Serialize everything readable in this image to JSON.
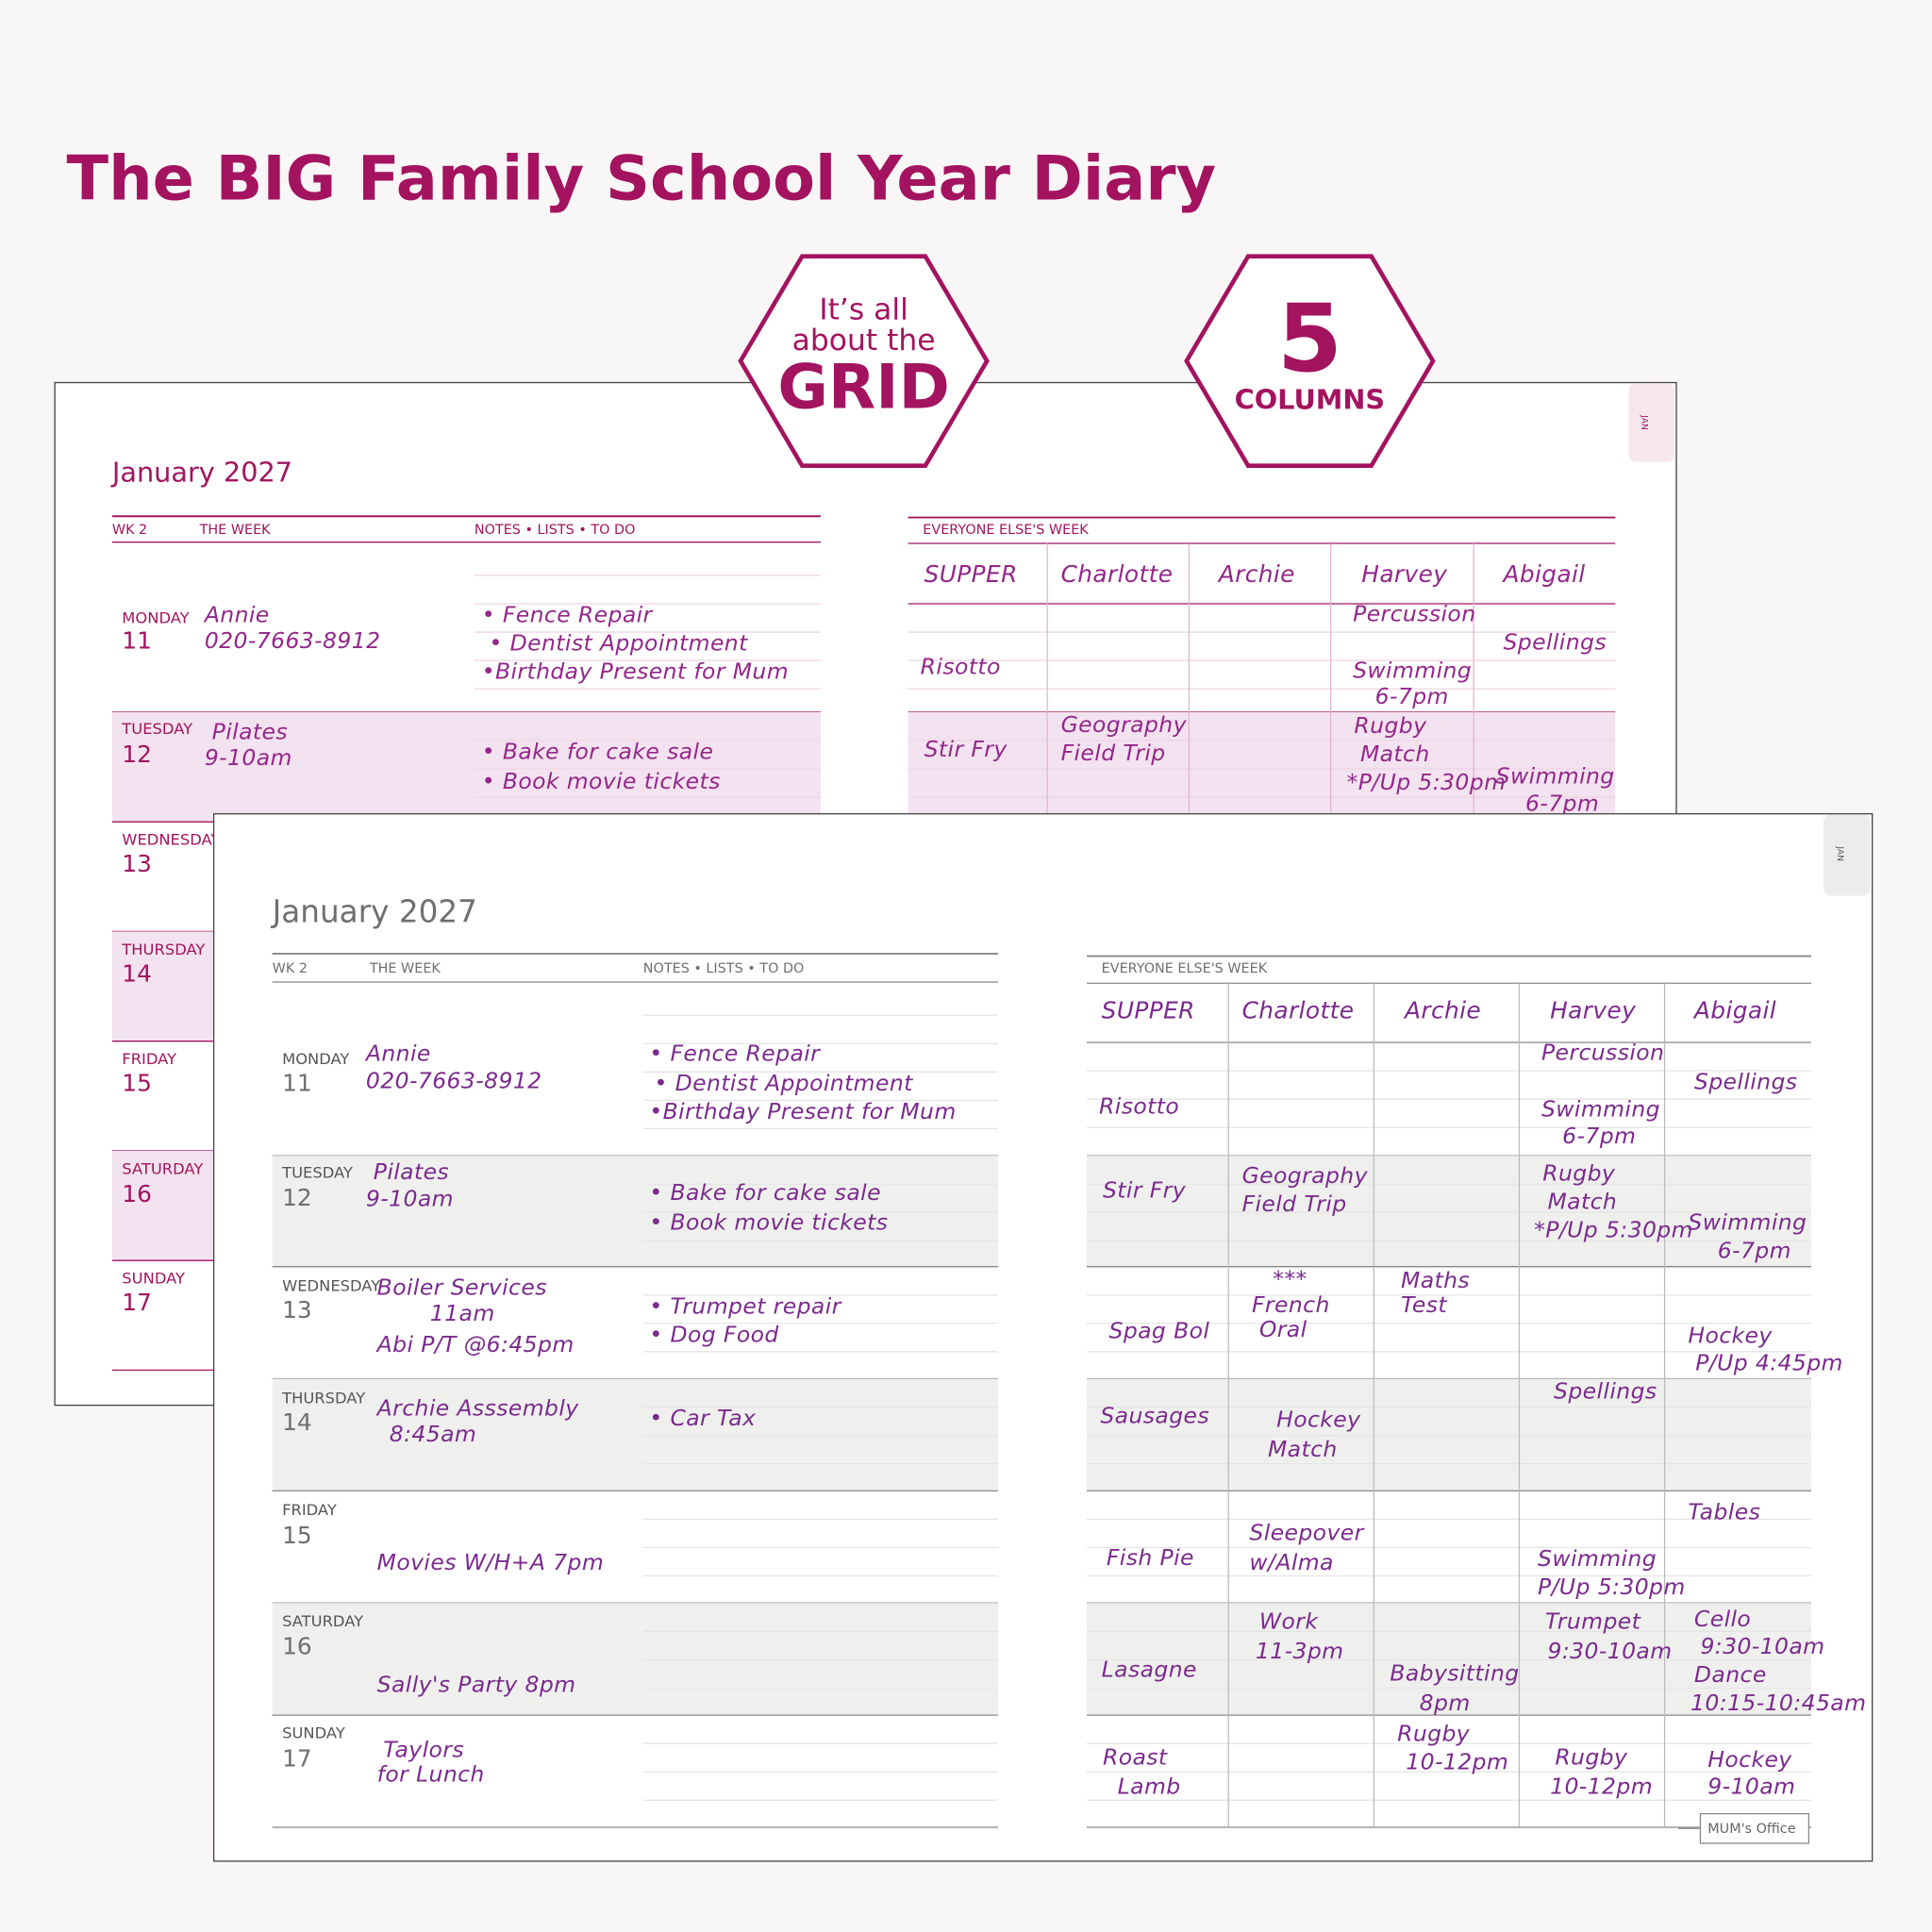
{
  "title": "The BIG Family School Year Diary",
  "badges": [
    {
      "lines": [
        "It’s all",
        "about the",
        "GRID"
      ]
    },
    {
      "lines": [
        "5",
        "COLUMNS"
      ]
    }
  ],
  "pages": [
    {
      "month": "January 2027",
      "tab": "JAN",
      "week_label": "WK 2",
      "week_column": "THE WEEK",
      "notes_column": "NOTES • LISTS • TO DO",
      "others_title": "EVERYONE ELSE'S WEEK",
      "columns": [
        "SUPPER",
        "Charlotte",
        "Archie",
        "Harvey",
        "Abigail"
      ],
      "days": [
        {
          "name": "MONDAY",
          "number": 11,
          "week": [
            "Annie",
            "020-7663-8912"
          ],
          "notes": [
            "• Fence Repair",
            "• Dentist Appointment",
            "•Birthday Present for Mum"
          ],
          "others": [
            "Percussion",
            "Spellings",
            "Risotto",
            "Swimming",
            "6-7pm"
          ]
        },
        {
          "name": "TUESDAY",
          "number": 12,
          "week": [
            "Pilates",
            "9-10am"
          ],
          "notes": [
            "• Bake for cake sale",
            "• Book movie tickets"
          ],
          "others": [
            "Stir Fry",
            "Geography",
            "Field Trip",
            "Rugby",
            "Match",
            "*P/Up 5:30pm",
            "Swimming",
            "6-7pm"
          ]
        },
        {
          "name": "WEDNESDAY",
          "number": 13,
          "week": [],
          "notes": [],
          "others": []
        },
        {
          "name": "THURSDAY",
          "number": 14,
          "week": [],
          "notes": [],
          "others": []
        },
        {
          "name": "FRIDAY",
          "number": 15,
          "week": [],
          "notes": [],
          "others": []
        },
        {
          "name": "SATURDAY",
          "number": 16,
          "week": [],
          "notes": [],
          "others": []
        },
        {
          "name": "SUNDAY",
          "number": 17,
          "week": [],
          "notes": [],
          "others": []
        }
      ]
    },
    {
      "month": "January 2027",
      "tab": "JAN",
      "week_label": "WK 2",
      "week_column": "THE WEEK",
      "notes_column": "NOTES • LISTS • TO DO",
      "others_title": "EVERYONE ELSE'S WEEK",
      "columns": [
        "SUPPER",
        "Charlotte",
        "Archie",
        "Harvey",
        "Abigail"
      ],
      "days": [
        {
          "name": "MONDAY",
          "number": 11,
          "week": [
            "Annie",
            "020-7663-8912"
          ],
          "notes": [
            "• Fence Repair",
            "• Dentist Appointment",
            "•Birthday Present for Mum"
          ],
          "others": [
            "Percussion",
            "Spellings",
            "Risotto",
            "Swimming",
            "6-7pm"
          ]
        },
        {
          "name": "TUESDAY",
          "number": 12,
          "week": [
            "Pilates",
            "9-10am"
          ],
          "notes": [
            "• Bake for cake sale",
            "• Book movie tickets"
          ],
          "others": [
            "Stir Fry",
            "Geography",
            "Field Trip",
            "Rugby",
            "Match",
            "*P/Up 5:30pm",
            "Swimming",
            "6-7pm"
          ]
        },
        {
          "name": "WEDNESDAY",
          "number": 13,
          "week": [
            "Boiler Services",
            "11am",
            "Abi P/T @6:45pm"
          ],
          "notes": [
            "• Trumpet repair",
            "•  Dog Food"
          ],
          "others": [
            "***",
            "French",
            "Oral",
            "Maths",
            "Test",
            "Spag Bol",
            "Hockey",
            "P/Up 4:45pm"
          ]
        },
        {
          "name": "THURSDAY",
          "number": 14,
          "week": [
            "Archie Asssembly",
            "8:45am"
          ],
          "notes": [
            "• Car Tax"
          ],
          "others": [
            "Spellings",
            "Sausages",
            "Hockey",
            "Match"
          ]
        },
        {
          "name": "FRIDAY",
          "number": 15,
          "week": [
            "Movies W/H+A 7pm"
          ],
          "notes": [],
          "others": [
            "Tables",
            "Sleepover",
            "w/Alma",
            "Fish Pie",
            "Swimming",
            "P/Up 5:30pm"
          ]
        },
        {
          "name": "SATURDAY",
          "number": 16,
          "week": [
            "Sally's Party 8pm"
          ],
          "notes": [],
          "others": [
            "Work",
            "11-3pm",
            "Trumpet",
            "9:30-10am",
            "Cello",
            "9:30-10am",
            "Lasagne",
            "Babysitting",
            "8pm",
            "Dance",
            "10:15-10:45am"
          ]
        },
        {
          "name": "SUNDAY",
          "number": 17,
          "week": [
            "Taylors",
            "for Lunch"
          ],
          "notes": [],
          "others": [
            "Roast",
            "Lamb",
            "Rugby",
            "10-12pm",
            "Rugby",
            "10-12pm",
            "Hockey",
            "9-10am"
          ]
        }
      ],
      "footer": "MUM's Office"
    }
  ]
}
